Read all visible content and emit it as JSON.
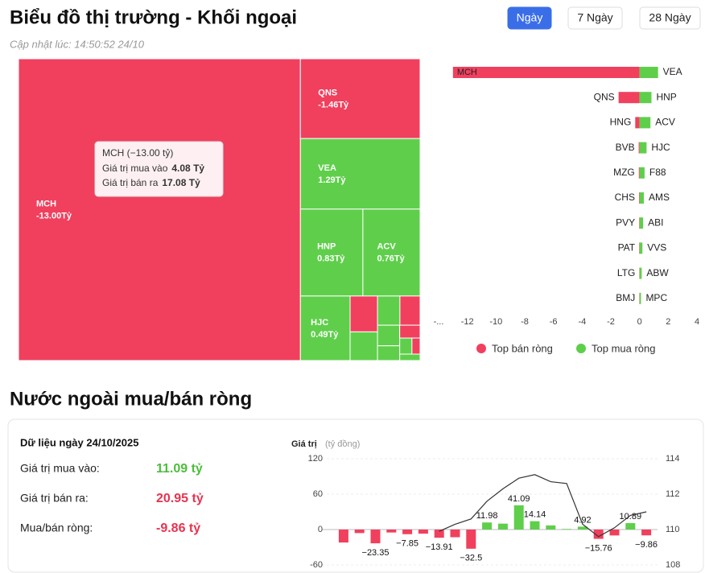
{
  "header": {
    "title": "Biểu đồ thị trường - Khối ngoại",
    "updated": "Cập nhật lúc: 14:50:52 24/10",
    "tabs": [
      "Ngày",
      "7 Ngày",
      "28 Ngày"
    ],
    "active_tab": 0
  },
  "tooltip": {
    "title": "MCH (−13.00 tỷ)",
    "rows": [
      [
        "Giá trị mua vào",
        "4.08 Tỷ"
      ],
      [
        "Giá trị bán ra",
        "17.08 Tỷ"
      ]
    ]
  },
  "section": {
    "title": "Nước ngoài mua/bán ròng",
    "date": "Dữ liệu ngày 24/10/2025",
    "rows": [
      {
        "label": "Giá trị mua vào:",
        "value": "11.09 tỷ",
        "color": "#4cbe3a"
      },
      {
        "label": "Giá trị bán ra:",
        "value": "20.95 tỷ",
        "color": "#e8334f"
      },
      {
        "label": "Mua/bán ròng:",
        "value": "-9.86 tỷ",
        "color": "#e8334f"
      }
    ]
  },
  "chart_data": [
    {
      "type": "treemap",
      "categories": [
        "MCH",
        "QNS",
        "VEA",
        "HNP",
        "ACV",
        "HJC",
        null,
        null,
        null,
        null,
        null,
        null,
        null,
        null,
        null,
        null
      ],
      "values": [
        -13.0,
        -1.46,
        1.29,
        0.83,
        0.76,
        0.49,
        -0.15,
        0.12,
        0.1,
        -0.09,
        0.07,
        0.05,
        -0.04,
        0.03,
        -0.02,
        0.02
      ],
      "value_labels": [
        "-13.00Tỷ",
        "-1.46Tỷ",
        "1.29Tỷ",
        "0.83Tỷ",
        "0.76Tỷ",
        "0.49Tỷ",
        null,
        null,
        null,
        null,
        null,
        null,
        null,
        null,
        null,
        null
      ],
      "colors": {
        "positive": "#5fcf4b",
        "negative": "#f0405e"
      }
    },
    {
      "type": "diverging-bar",
      "series": [
        {
          "name": "Top bán ròng",
          "color": "#f0405e",
          "categories": [
            "MCH",
            "QNS",
            "HNG",
            "BVB",
            "MZG",
            "CHS",
            "PVY",
            "PAT",
            "LTG",
            "BMJ"
          ],
          "values": [
            -13.0,
            -1.46,
            -0.3,
            -0.06,
            -0.05,
            -0.04,
            -0.03,
            -0.03,
            -0.02,
            -0.02
          ]
        },
        {
          "name": "Top mua ròng",
          "color": "#5fcf4b",
          "categories": [
            "VEA",
            "HNP",
            "ACV",
            "HJC",
            "F88",
            "AMS",
            "ABI",
            "VVS",
            "ABW",
            "MPC"
          ],
          "values": [
            1.29,
            0.83,
            0.76,
            0.49,
            0.35,
            0.3,
            0.25,
            0.2,
            0.15,
            0.1
          ]
        }
      ],
      "xlim": [
        -14,
        4
      ],
      "xticks": [
        {
          "value": -14,
          "label": "-..."
        },
        -12,
        -10,
        -8,
        -6,
        -4,
        -2,
        0,
        2,
        4
      ]
    },
    {
      "type": "combo",
      "y_label": "Giá trị",
      "y_unit": "(tỷ đồng)",
      "categories": [
        null,
        null,
        null,
        null,
        null,
        null,
        null,
        null,
        null,
        null,
        null,
        null,
        null,
        null,
        null,
        null,
        null,
        null,
        null,
        null
      ],
      "series": [
        {
          "type": "bar",
          "colors": {
            "positive": "#5fcf4b",
            "negative": "#f0405e"
          },
          "values": [
            -22,
            -6,
            -23.35,
            -5,
            -7.85,
            -7,
            -13.91,
            -13,
            -32.5,
            11.98,
            10,
            41.09,
            14.14,
            7,
            1,
            4.92,
            -15.76,
            -10,
            10.89,
            -9.86
          ],
          "value_labels": [
            null,
            null,
            "−23.35",
            null,
            "−7.85",
            null,
            "−13.91",
            null,
            "−32.5",
            "11.98",
            null,
            "41.09",
            "14.14",
            null,
            null,
            "4.92",
            "−15.76",
            null,
            "10.89",
            "−9.86"
          ]
        },
        {
          "type": "line",
          "axis": "y2",
          "color": "#333333",
          "values": [
            null,
            null,
            null,
            null,
            null,
            null,
            109.9,
            110.3,
            110.6,
            111.6,
            112.3,
            112.9,
            113.1,
            112.7,
            112.6,
            110.3,
            109.6,
            110.1,
            110.8,
            111.0
          ]
        }
      ],
      "ylim": [
        -60,
        120
      ],
      "yticks": [
        -60,
        0,
        60,
        120
      ],
      "y2lim": [
        108,
        114
      ],
      "y2ticks": [
        108,
        110,
        112,
        114
      ]
    }
  ]
}
